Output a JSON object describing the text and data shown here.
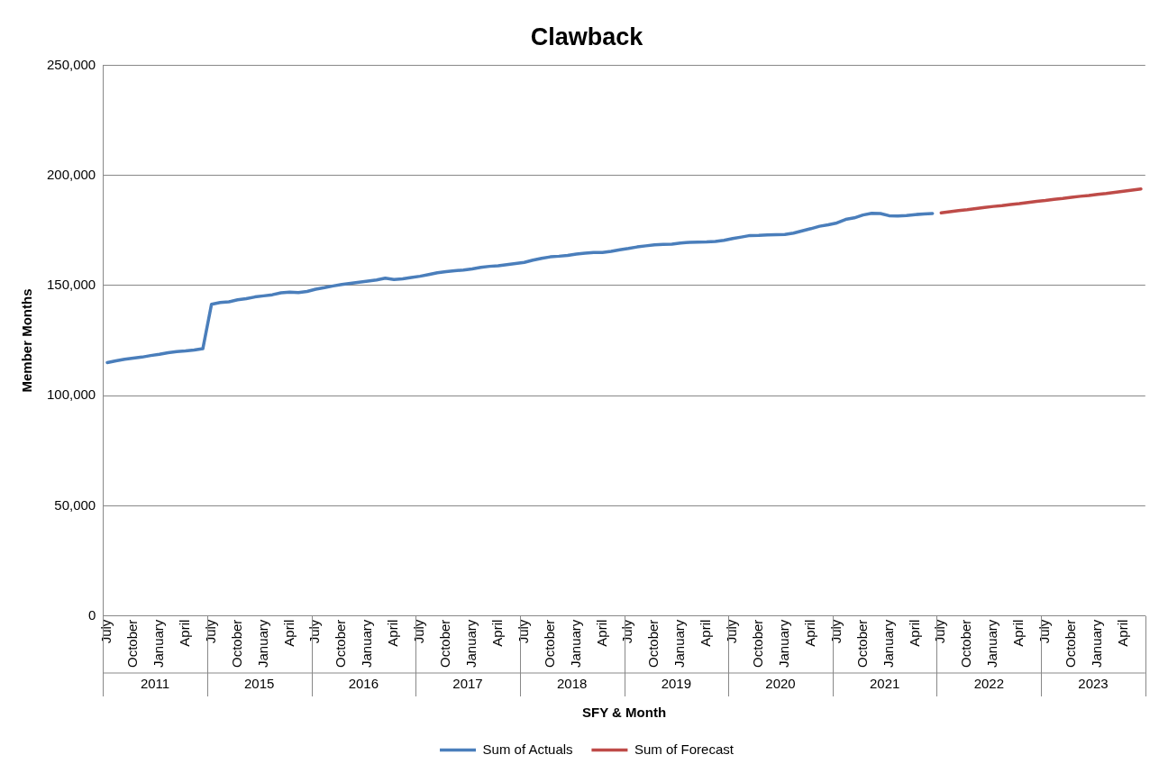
{
  "chart_data": {
    "type": "line",
    "title": "Clawback",
    "xlabel": "SFY & Month",
    "ylabel": "Member Months",
    "categories": [
      "July",
      null,
      null,
      "October",
      null,
      null,
      "January",
      null,
      null,
      "April",
      null,
      null,
      "July",
      null,
      null,
      "October",
      null,
      null,
      "January",
      null,
      null,
      "April",
      null,
      null,
      "July",
      null,
      null,
      "October",
      null,
      null,
      "January",
      null,
      null,
      "April",
      null,
      null,
      "July",
      null,
      null,
      "October",
      null,
      null,
      "January",
      null,
      null,
      "April",
      null,
      null,
      "July",
      null,
      null,
      "October",
      null,
      null,
      "January",
      null,
      null,
      "April",
      null,
      null,
      "July",
      null,
      null,
      "October",
      null,
      null,
      "January",
      null,
      null,
      "April",
      null,
      null,
      "July",
      null,
      null,
      "October",
      null,
      null,
      "January",
      null,
      null,
      "April",
      null,
      null,
      "July",
      null,
      null,
      "October",
      null,
      null,
      "January",
      null,
      null,
      "April",
      null,
      null,
      "July",
      null,
      null,
      "October",
      null,
      null,
      "January",
      null,
      null,
      "April",
      null,
      null,
      "July",
      null,
      null,
      "October",
      null,
      null,
      "January",
      null,
      null,
      "April",
      null,
      null
    ],
    "annotations": [
      "2011",
      "2015",
      "2016",
      "2017",
      "2018",
      "2019",
      "2020",
      "2021",
      "2022",
      "2023"
    ],
    "series": [
      {
        "name": "Sum of Actuals",
        "color": "#4a7ebb",
        "values": [
          115000,
          115800,
          116500,
          117000,
          117500,
          118200,
          118800,
          119500,
          120000,
          120300,
          120700,
          121300,
          141500,
          142300,
          142600,
          143500,
          144000,
          144800,
          145300,
          145800,
          146700,
          147000,
          146800,
          147300,
          148300,
          149000,
          149800,
          150500,
          151000,
          151500,
          152000,
          152500,
          153300,
          152700,
          153000,
          153600,
          154200,
          155000,
          155800,
          156300,
          156700,
          157000,
          157500,
          158200,
          158700,
          159000,
          159500,
          160000,
          160500,
          161500,
          162300,
          163000,
          163300,
          163700,
          164300,
          164700,
          165000,
          165000,
          165500,
          166200,
          166800,
          167500,
          168000,
          168500,
          168700,
          168800,
          169300,
          169600,
          169700,
          169800,
          170000,
          170500,
          171300,
          172000,
          172700,
          172800,
          173000,
          173100,
          173200,
          173800,
          174800,
          175800,
          176900,
          177600,
          178400,
          180000,
          180700,
          182000,
          182800,
          182700,
          181700,
          181600,
          181800,
          182200,
          182500,
          182700,
          null,
          null,
          null,
          null,
          null,
          null,
          null,
          null,
          null,
          null,
          null,
          null,
          null,
          null,
          null,
          null,
          null,
          null,
          null,
          null,
          null,
          null,
          null,
          null
        ]
      },
      {
        "name": "Sum of Forecast",
        "color": "#be4b48",
        "values": [
          null,
          null,
          null,
          null,
          null,
          null,
          null,
          null,
          null,
          null,
          null,
          null,
          null,
          null,
          null,
          null,
          null,
          null,
          null,
          null,
          null,
          null,
          null,
          null,
          null,
          null,
          null,
          null,
          null,
          null,
          null,
          null,
          null,
          null,
          null,
          null,
          null,
          null,
          null,
          null,
          null,
          null,
          null,
          null,
          null,
          null,
          null,
          null,
          null,
          null,
          null,
          null,
          null,
          null,
          null,
          null,
          null,
          null,
          null,
          null,
          null,
          null,
          null,
          null,
          null,
          null,
          null,
          null,
          null,
          null,
          null,
          null,
          null,
          null,
          null,
          null,
          null,
          null,
          null,
          null,
          null,
          null,
          null,
          null,
          null,
          null,
          null,
          null,
          null,
          null,
          null,
          null,
          null,
          null,
          null,
          null,
          183000,
          183500,
          184000,
          184400,
          184900,
          185400,
          185900,
          186300,
          186800,
          187200,
          187700,
          188200,
          188600,
          189100,
          189500,
          190000,
          190500,
          190900,
          191400,
          191800,
          192300,
          192800,
          193300,
          193800
        ]
      }
    ],
    "ylim": [
      0,
      250000
    ],
    "yticks": [
      0,
      {
        "value": 50000,
        "label": "50,000"
      },
      {
        "value": 100000,
        "label": "100,000"
      },
      {
        "value": 150000,
        "label": "150,000"
      },
      {
        "value": 200000,
        "label": "200,000"
      },
      {
        "value": 250000,
        "label": "250,000"
      }
    ],
    "grid": "y",
    "legend": "bottom",
    "marker": "none",
    "line_style": "solid"
  }
}
